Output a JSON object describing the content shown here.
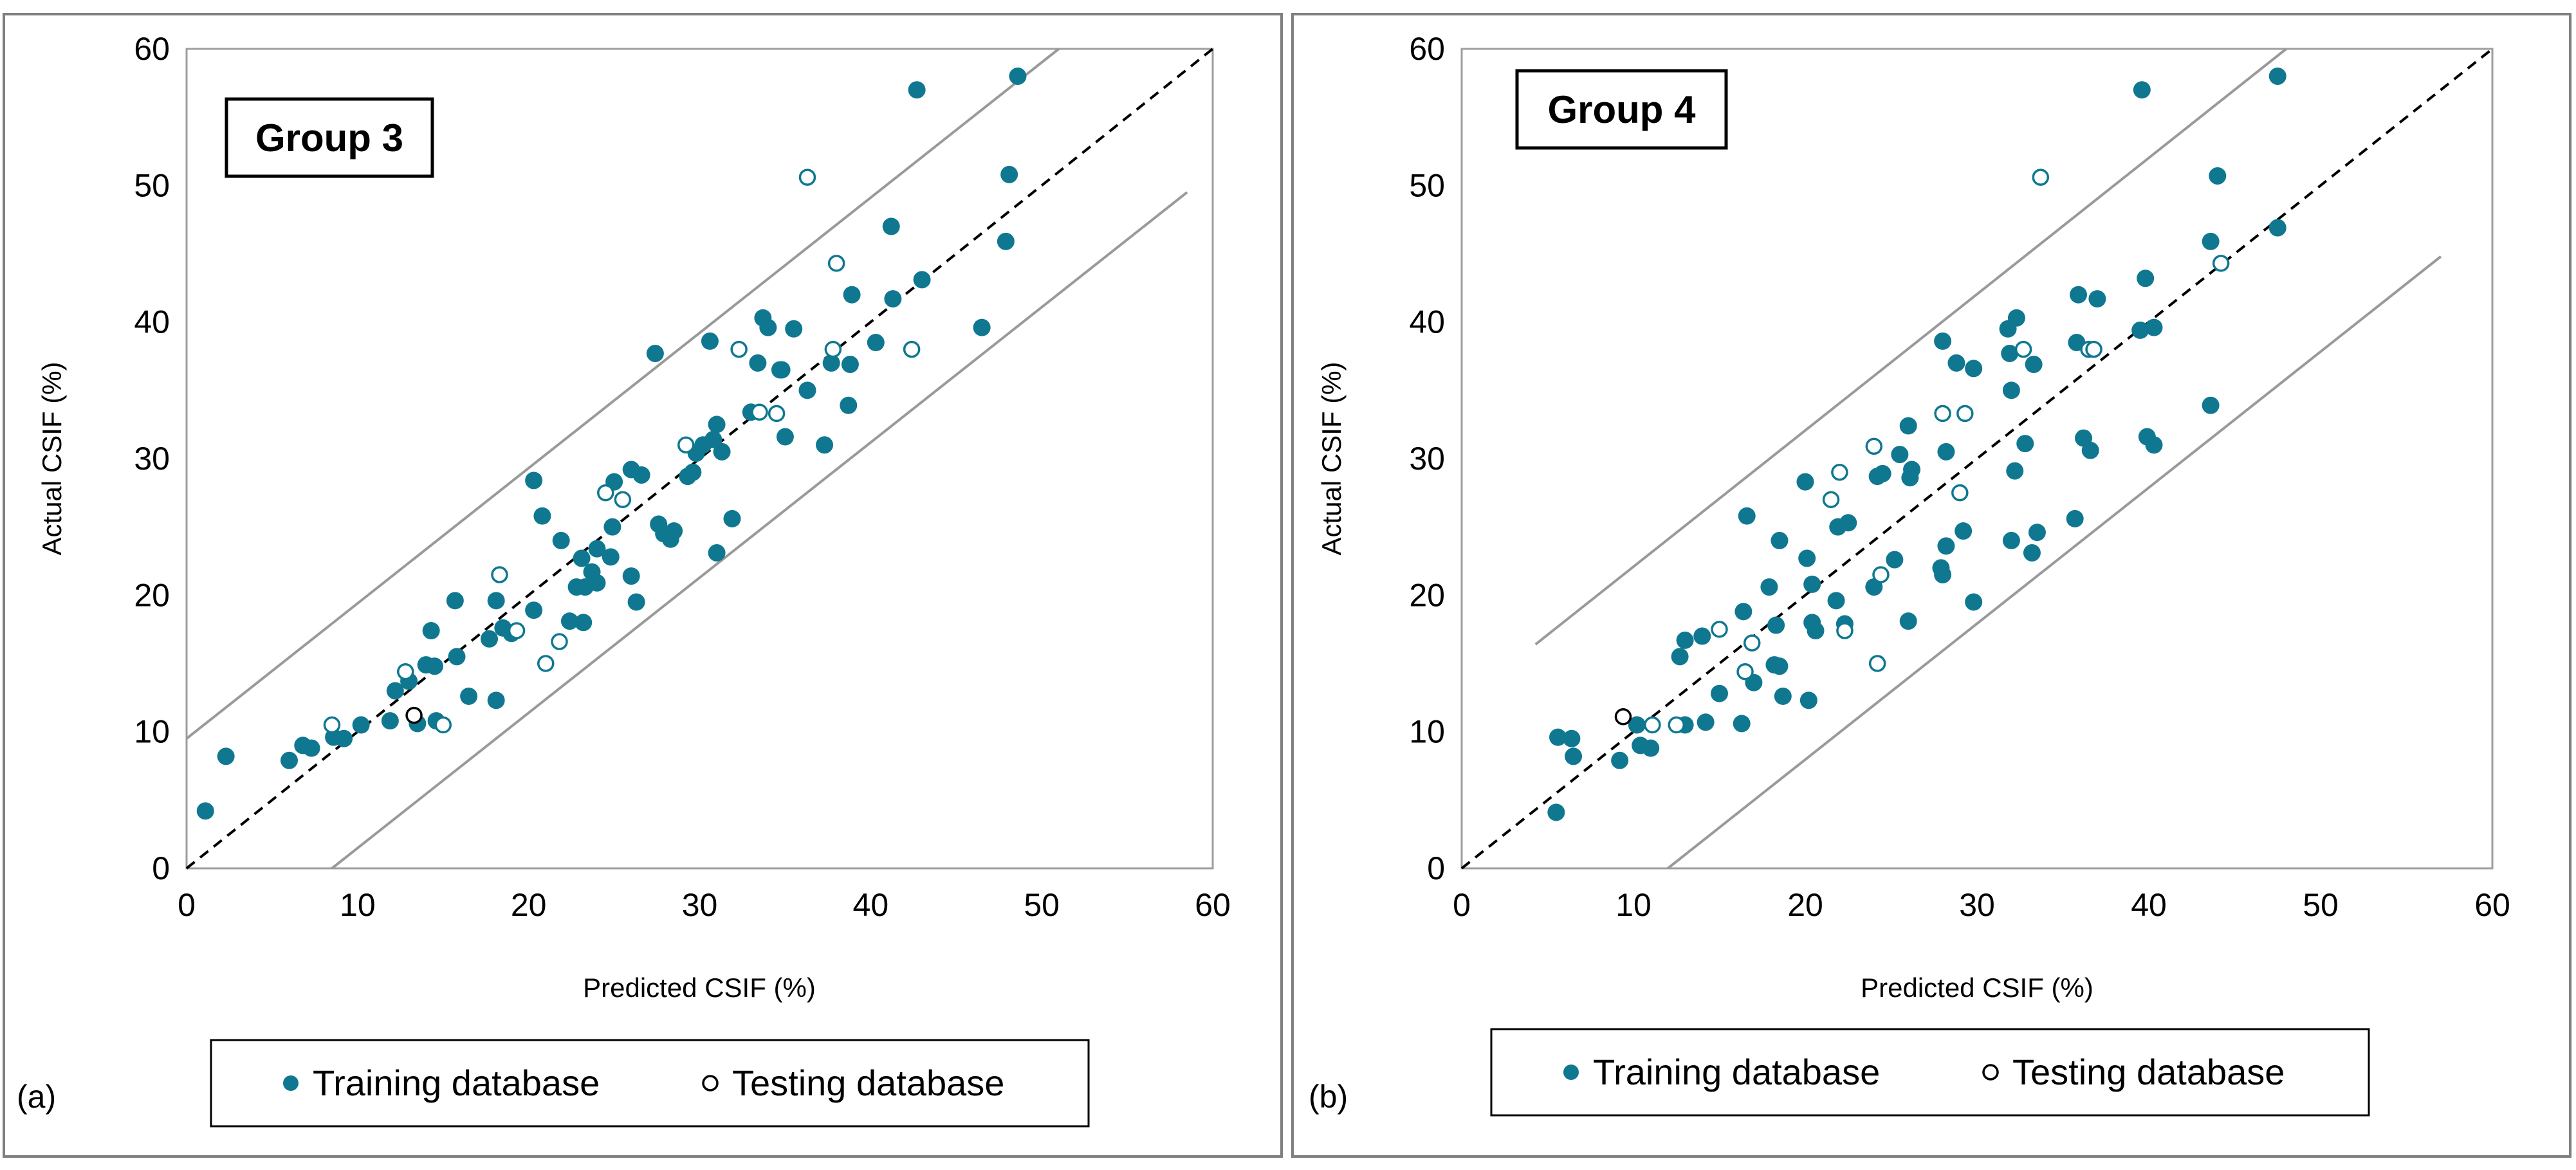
{
  "colors": {
    "series": "#0f7890",
    "reference_line": "#000000",
    "bound_lines": "#9a9a9a"
  },
  "chart_data": [
    {
      "type": "scatter",
      "panel_label": "(a)",
      "group_label": "Group 3",
      "xlabel": "Predicted CSIF (%)",
      "ylabel": "Actual CSIF (%)",
      "xlim": [
        0,
        60
      ],
      "ylim": [
        0,
        60
      ],
      "x_ticks": [
        "0",
        "10",
        "20",
        "30",
        "40",
        "50",
        "60"
      ],
      "y_ticks": [
        "0",
        "10",
        "20",
        "30",
        "40",
        "50",
        "60"
      ],
      "legend": [
        "Training database",
        "Testing database"
      ],
      "reference_line": {
        "style": "dashed",
        "from": [
          0,
          0
        ],
        "to": [
          60,
          60
        ]
      },
      "bound_lines": [
        {
          "from": [
            0,
            9.5
          ],
          "to": [
            51,
            60
          ]
        },
        {
          "from": [
            8.5,
            0
          ],
          "to": [
            58.5,
            49.5
          ]
        }
      ],
      "series": [
        {
          "name": "Training database",
          "marker": "filled",
          "points": [
            [
              1.1,
              4.2
            ],
            [
              2.3,
              8.2
            ],
            [
              6.0,
              7.9
            ],
            [
              6.8,
              9.0
            ],
            [
              7.3,
              8.8
            ],
            [
              8.6,
              9.6
            ],
            [
              9.2,
              9.5
            ],
            [
              10.2,
              10.5
            ],
            [
              11.9,
              10.8
            ],
            [
              12.2,
              13.0
            ],
            [
              13.0,
              13.7
            ],
            [
              13.5,
              10.6
            ],
            [
              14.0,
              14.9
            ],
            [
              14.6,
              10.8
            ],
            [
              14.3,
              17.4
            ],
            [
              14.5,
              14.8
            ],
            [
              15.8,
              15.5
            ],
            [
              15.7,
              19.6
            ],
            [
              16.5,
              12.6
            ],
            [
              17.7,
              16.8
            ],
            [
              18.1,
              12.3
            ],
            [
              18.1,
              19.6
            ],
            [
              18.5,
              17.6
            ],
            [
              19.0,
              17.2
            ],
            [
              20.3,
              18.9
            ],
            [
              20.3,
              28.4
            ],
            [
              20.8,
              25.8
            ],
            [
              21.9,
              24.0
            ],
            [
              22.4,
              18.1
            ],
            [
              22.8,
              20.6
            ],
            [
              23.1,
              22.7
            ],
            [
              23.2,
              18.0
            ],
            [
              23.3,
              20.6
            ],
            [
              23.7,
              21.7
            ],
            [
              24.0,
              23.4
            ],
            [
              24.0,
              20.9
            ],
            [
              24.8,
              22.8
            ],
            [
              24.9,
              25.0
            ],
            [
              25.0,
              28.3
            ],
            [
              26.0,
              29.2
            ],
            [
              26.0,
              21.4
            ],
            [
              26.3,
              19.5
            ],
            [
              26.6,
              28.8
            ],
            [
              27.4,
              37.7
            ],
            [
              27.6,
              25.2
            ],
            [
              27.9,
              24.5
            ],
            [
              28.3,
              24.1
            ],
            [
              28.5,
              24.7
            ],
            [
              29.3,
              28.7
            ],
            [
              29.6,
              29.0
            ],
            [
              29.8,
              30.4
            ],
            [
              30.2,
              31.0
            ],
            [
              30.6,
              38.6
            ],
            [
              30.8,
              31.4
            ],
            [
              31.0,
              32.5
            ],
            [
              31.0,
              23.1
            ],
            [
              31.3,
              30.5
            ],
            [
              31.9,
              25.6
            ],
            [
              33.4,
              37.0
            ],
            [
              33.7,
              40.3
            ],
            [
              34.0,
              39.6
            ],
            [
              34.8,
              36.5
            ],
            [
              35.0,
              31.6
            ],
            [
              35.5,
              39.5
            ],
            [
              36.3,
              35.0
            ],
            [
              37.3,
              31.0
            ],
            [
              37.7,
              37.0
            ],
            [
              38.7,
              33.9
            ],
            [
              38.8,
              36.9
            ],
            [
              38.9,
              42.0
            ],
            [
              40.3,
              38.5
            ],
            [
              41.2,
              47.0
            ],
            [
              41.3,
              41.7
            ],
            [
              43.0,
              43.1
            ],
            [
              46.5,
              39.6
            ],
            [
              47.9,
              45.9
            ],
            [
              48.1,
              50.8
            ],
            [
              48.6,
              58.0
            ],
            [
              42.7,
              57.0
            ],
            [
              33.0,
              33.4
            ],
            [
              34.7,
              36.5
            ]
          ]
        },
        {
          "name": "Testing database",
          "marker": "hollow",
          "points": [
            [
              8.5,
              10.5
            ],
            [
              12.8,
              14.4
            ],
            [
              13.3,
              11.2
            ],
            [
              15.0,
              10.5
            ],
            [
              18.3,
              21.5
            ],
            [
              19.3,
              17.4
            ],
            [
              21.0,
              15.0
            ],
            [
              21.8,
              16.6
            ],
            [
              24.5,
              27.5
            ],
            [
              25.5,
              27.0
            ],
            [
              29.2,
              31.0
            ],
            [
              32.3,
              38.0
            ],
            [
              33.5,
              33.4
            ],
            [
              34.5,
              33.3
            ],
            [
              36.3,
              50.6
            ],
            [
              37.8,
              38.0
            ],
            [
              38.0,
              44.3
            ],
            [
              42.4,
              38.0
            ]
          ],
          "highlight": [
            [
              13.3,
              11.2
            ]
          ]
        }
      ]
    },
    {
      "type": "scatter",
      "panel_label": "(b)",
      "group_label": "Group 4",
      "xlabel": "Predicted CSIF (%)",
      "ylabel": "Actual CSIF (%)",
      "xlim": [
        0,
        60
      ],
      "ylim": [
        0,
        60
      ],
      "x_ticks": [
        "0",
        "10",
        "20",
        "30",
        "40",
        "50",
        "60"
      ],
      "y_ticks": [
        "0",
        "10",
        "20",
        "30",
        "40",
        "50",
        "60"
      ],
      "legend": [
        "Training database",
        "Testing database"
      ],
      "reference_line": {
        "style": "dashed",
        "from": [
          0,
          0
        ],
        "to": [
          60,
          60
        ]
      },
      "bound_lines": [
        {
          "from": [
            4.3,
            16.4
          ],
          "to": [
            48,
            60
          ]
        },
        {
          "from": [
            12,
            0
          ],
          "to": [
            57,
            44.8
          ]
        }
      ],
      "series": [
        {
          "name": "Training database",
          "marker": "filled",
          "points": [
            [
              5.5,
              4.1
            ],
            [
              5.6,
              9.6
            ],
            [
              6.4,
              9.5
            ],
            [
              6.5,
              8.2
            ],
            [
              9.2,
              7.9
            ],
            [
              10.2,
              10.5
            ],
            [
              10.4,
              9.0
            ],
            [
              11.0,
              8.8
            ],
            [
              12.7,
              15.5
            ],
            [
              13.0,
              16.7
            ],
            [
              13.0,
              10.5
            ],
            [
              14.2,
              10.7
            ],
            [
              14.0,
              17.0
            ],
            [
              15.0,
              12.8
            ],
            [
              16.4,
              18.8
            ],
            [
              16.3,
              10.6
            ],
            [
              16.6,
              25.8
            ],
            [
              17.0,
              13.6
            ],
            [
              17.9,
              20.6
            ],
            [
              18.2,
              14.9
            ],
            [
              18.3,
              17.8
            ],
            [
              18.5,
              14.8
            ],
            [
              18.5,
              24.0
            ],
            [
              18.7,
              12.6
            ],
            [
              20.1,
              22.7
            ],
            [
              20.0,
              28.3
            ],
            [
              20.2,
              12.3
            ],
            [
              20.4,
              18.0
            ],
            [
              20.4,
              20.8
            ],
            [
              20.6,
              17.4
            ],
            [
              21.8,
              19.6
            ],
            [
              21.9,
              25.0
            ],
            [
              22.3,
              17.9
            ],
            [
              22.5,
              25.3
            ],
            [
              24.0,
              20.6
            ],
            [
              24.2,
              28.7
            ],
            [
              24.5,
              28.9
            ],
            [
              25.2,
              22.6
            ],
            [
              25.5,
              30.3
            ],
            [
              26.0,
              18.1
            ],
            [
              26.0,
              32.4
            ],
            [
              26.1,
              28.6
            ],
            [
              26.2,
              29.2
            ],
            [
              27.9,
              22.0
            ],
            [
              28.0,
              21.5
            ],
            [
              28.0,
              38.6
            ],
            [
              28.2,
              30.5
            ],
            [
              28.2,
              23.6
            ],
            [
              28.8,
              37.0
            ],
            [
              29.2,
              24.7
            ],
            [
              29.8,
              19.5
            ],
            [
              29.8,
              36.6
            ],
            [
              31.8,
              39.5
            ],
            [
              31.9,
              37.7
            ],
            [
              32.0,
              24.0
            ],
            [
              32.0,
              35.0
            ],
            [
              32.2,
              29.1
            ],
            [
              32.3,
              40.3
            ],
            [
              32.8,
              31.1
            ],
            [
              33.2,
              23.1
            ],
            [
              33.3,
              36.9
            ],
            [
              33.5,
              24.6
            ],
            [
              35.7,
              25.6
            ],
            [
              35.8,
              38.5
            ],
            [
              35.9,
              42.0
            ],
            [
              36.2,
              31.5
            ],
            [
              36.6,
              30.6
            ],
            [
              37.0,
              41.7
            ],
            [
              39.5,
              39.4
            ],
            [
              39.6,
              57.0
            ],
            [
              39.8,
              43.2
            ],
            [
              39.9,
              31.6
            ],
            [
              40.3,
              31.0
            ],
            [
              40.3,
              39.6
            ],
            [
              43.6,
              45.9
            ],
            [
              43.6,
              33.9
            ],
            [
              44.0,
              50.7
            ],
            [
              47.5,
              46.9
            ],
            [
              47.5,
              58.0
            ]
          ]
        },
        {
          "name": "Testing database",
          "marker": "hollow",
          "points": [
            [
              9.4,
              11.1
            ],
            [
              12.5,
              10.5
            ],
            [
              11.1,
              10.5
            ],
            [
              15.0,
              17.5
            ],
            [
              16.5,
              14.4
            ],
            [
              16.9,
              16.5
            ],
            [
              21.5,
              27.0
            ],
            [
              22.0,
              29.0
            ],
            [
              22.3,
              17.4
            ],
            [
              24.0,
              30.9
            ],
            [
              24.2,
              15.0
            ],
            [
              24.4,
              21.5
            ],
            [
              28.0,
              33.3
            ],
            [
              29.0,
              27.5
            ],
            [
              29.3,
              33.3
            ],
            [
              32.7,
              38.0
            ],
            [
              33.7,
              50.6
            ],
            [
              36.5,
              38.0
            ],
            [
              36.8,
              38.0
            ],
            [
              44.2,
              44.3
            ]
          ],
          "highlight": [
            [
              9.4,
              11.1
            ]
          ]
        }
      ]
    }
  ]
}
